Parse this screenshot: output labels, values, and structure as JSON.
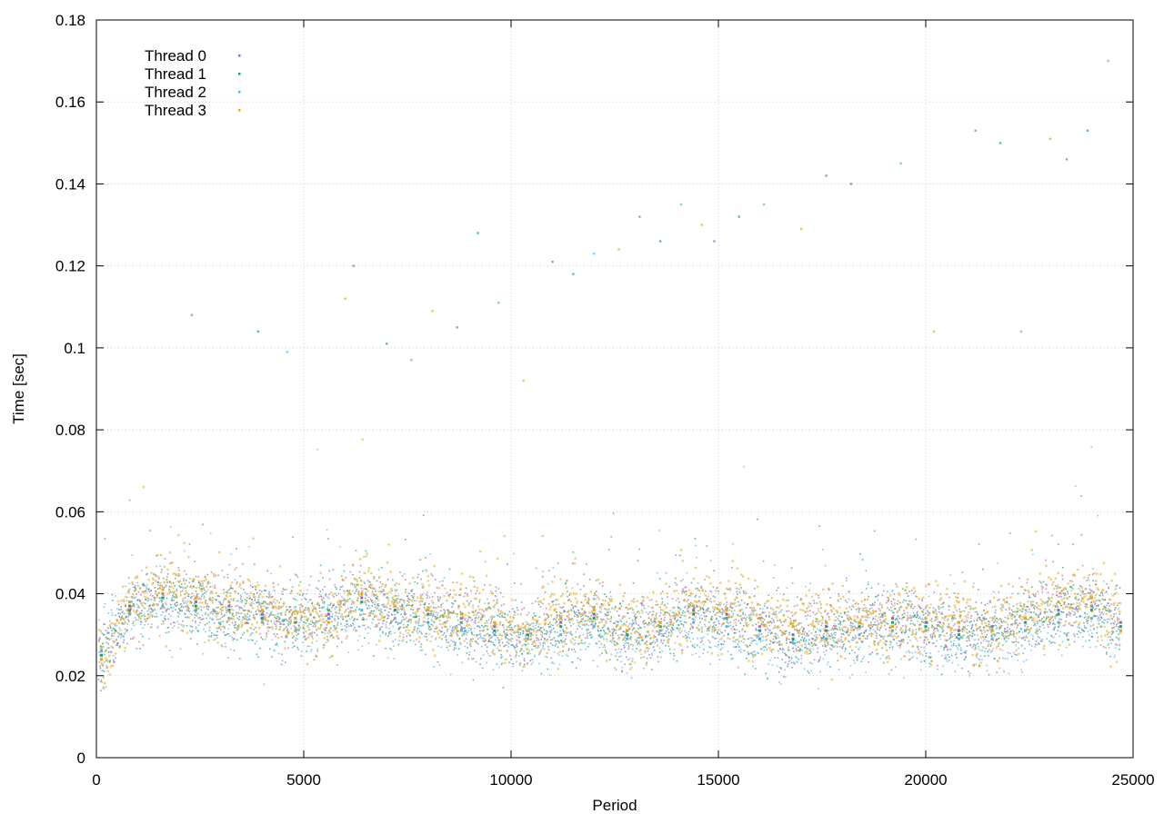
{
  "chart_data": {
    "type": "scatter",
    "title": "",
    "xlabel": "Period",
    "ylabel": "Time [sec]",
    "xlim": [
      0,
      25000
    ],
    "ylim": [
      0,
      0.18
    ],
    "xticks": [
      0,
      5000,
      10000,
      15000,
      20000,
      25000
    ],
    "yticks": [
      0,
      0.02,
      0.04,
      0.06,
      0.08,
      0.1,
      0.12,
      0.14,
      0.16,
      0.18
    ],
    "xtick_labels": [
      "0",
      "5000",
      "10000",
      "15000",
      "20000",
      "25000"
    ],
    "ytick_labels": [
      "0",
      "0.02",
      "0.04",
      "0.06",
      "0.08",
      "0.1",
      "0.12",
      "0.14",
      "0.16",
      "0.18"
    ],
    "grid": true,
    "legend_position": "top-left",
    "series": [
      {
        "name": "Thread 0",
        "color": "#9a5fc8",
        "marker": "dot",
        "points": [
          [
            120,
            0.024
          ],
          [
            800,
            0.036
          ],
          [
            1600,
            0.04
          ],
          [
            2400,
            0.038
          ],
          [
            3200,
            0.037
          ],
          [
            4000,
            0.035
          ],
          [
            4800,
            0.034
          ],
          [
            5600,
            0.035
          ],
          [
            6400,
            0.039
          ],
          [
            7200,
            0.037
          ],
          [
            8000,
            0.036
          ],
          [
            8800,
            0.034
          ],
          [
            9600,
            0.032
          ],
          [
            10400,
            0.031
          ],
          [
            11200,
            0.033
          ],
          [
            12000,
            0.035
          ],
          [
            12800,
            0.031
          ],
          [
            13600,
            0.033
          ],
          [
            14400,
            0.036
          ],
          [
            15200,
            0.035
          ],
          [
            16000,
            0.032
          ],
          [
            16800,
            0.03
          ],
          [
            17600,
            0.032
          ],
          [
            18400,
            0.033
          ],
          [
            19200,
            0.034
          ],
          [
            20000,
            0.033
          ],
          [
            20800,
            0.031
          ],
          [
            21600,
            0.032
          ],
          [
            22400,
            0.034
          ],
          [
            23200,
            0.036
          ],
          [
            24000,
            0.037
          ],
          [
            24700,
            0.033
          ]
        ]
      },
      {
        "name": "Thread 1",
        "color": "#1a9e77",
        "marker": "dot",
        "points": [
          [
            120,
            0.025
          ],
          [
            800,
            0.037
          ],
          [
            1600,
            0.039
          ],
          [
            2400,
            0.037
          ],
          [
            3200,
            0.036
          ],
          [
            4000,
            0.034
          ],
          [
            4800,
            0.033
          ],
          [
            5600,
            0.036
          ],
          [
            6400,
            0.038
          ],
          [
            7200,
            0.036
          ],
          [
            8000,
            0.035
          ],
          [
            8800,
            0.033
          ],
          [
            9600,
            0.031
          ],
          [
            10400,
            0.03
          ],
          [
            11200,
            0.032
          ],
          [
            12000,
            0.034
          ],
          [
            12800,
            0.03
          ],
          [
            13600,
            0.032
          ],
          [
            14400,
            0.035
          ],
          [
            15200,
            0.034
          ],
          [
            16000,
            0.031
          ],
          [
            16800,
            0.029
          ],
          [
            17600,
            0.031
          ],
          [
            18400,
            0.032
          ],
          [
            19200,
            0.033
          ],
          [
            20000,
            0.032
          ],
          [
            20800,
            0.03
          ],
          [
            21600,
            0.031
          ],
          [
            22400,
            0.033
          ],
          [
            23200,
            0.035
          ],
          [
            24000,
            0.036
          ],
          [
            24700,
            0.032
          ]
        ]
      },
      {
        "name": "Thread 2",
        "color": "#56b4e9",
        "marker": "dot",
        "points": [
          [
            120,
            0.026
          ],
          [
            800,
            0.035
          ],
          [
            1600,
            0.037
          ],
          [
            2400,
            0.036
          ],
          [
            3200,
            0.034
          ],
          [
            4000,
            0.033
          ],
          [
            4800,
            0.031
          ],
          [
            5600,
            0.034
          ],
          [
            6400,
            0.036
          ],
          [
            7200,
            0.034
          ],
          [
            8000,
            0.033
          ],
          [
            8800,
            0.031
          ],
          [
            9600,
            0.03
          ],
          [
            10400,
            0.029
          ],
          [
            11200,
            0.03
          ],
          [
            12000,
            0.032
          ],
          [
            12800,
            0.029
          ],
          [
            13600,
            0.031
          ],
          [
            14400,
            0.033
          ],
          [
            15200,
            0.032
          ],
          [
            16000,
            0.029
          ],
          [
            16800,
            0.028
          ],
          [
            17600,
            0.029
          ],
          [
            18400,
            0.03
          ],
          [
            19200,
            0.031
          ],
          [
            20000,
            0.031
          ],
          [
            20800,
            0.029
          ],
          [
            21600,
            0.029
          ],
          [
            22400,
            0.031
          ],
          [
            23200,
            0.033
          ],
          [
            24000,
            0.034
          ],
          [
            24700,
            0.031
          ]
        ]
      },
      {
        "name": "Thread 3",
        "color": "#e6a817",
        "marker": "square",
        "points": [
          [
            120,
            0.024
          ],
          [
            800,
            0.038
          ],
          [
            1600,
            0.041
          ],
          [
            2400,
            0.039
          ],
          [
            3200,
            0.038
          ],
          [
            4000,
            0.036
          ],
          [
            4800,
            0.034
          ],
          [
            5600,
            0.033
          ],
          [
            6400,
            0.04
          ],
          [
            7200,
            0.037
          ],
          [
            8000,
            0.036
          ],
          [
            8800,
            0.035
          ],
          [
            9600,
            0.033
          ],
          [
            10400,
            0.031
          ],
          [
            11200,
            0.034
          ],
          [
            12000,
            0.036
          ],
          [
            12800,
            0.031
          ],
          [
            13600,
            0.033
          ],
          [
            14400,
            0.037
          ],
          [
            15200,
            0.036
          ],
          [
            16000,
            0.034
          ],
          [
            16800,
            0.032
          ],
          [
            17600,
            0.033
          ],
          [
            18400,
            0.033
          ],
          [
            19200,
            0.032
          ],
          [
            20000,
            0.034
          ],
          [
            20800,
            0.033
          ],
          [
            21600,
            0.031
          ],
          [
            22400,
            0.034
          ],
          [
            23200,
            0.038
          ],
          [
            24000,
            0.039
          ],
          [
            24700,
            0.031
          ]
        ]
      }
    ],
    "outliers": [
      [
        2300,
        0.108
      ],
      [
        3900,
        0.104
      ],
      [
        4600,
        0.099
      ],
      [
        6000,
        0.112
      ],
      [
        6200,
        0.12
      ],
      [
        7000,
        0.101
      ],
      [
        7600,
        0.097
      ],
      [
        8100,
        0.109
      ],
      [
        8700,
        0.105
      ],
      [
        9200,
        0.128
      ],
      [
        9700,
        0.111
      ],
      [
        10300,
        0.092
      ],
      [
        11000,
        0.121
      ],
      [
        11500,
        0.118
      ],
      [
        12000,
        0.123
      ],
      [
        12600,
        0.124
      ],
      [
        13100,
        0.132
      ],
      [
        13600,
        0.126
      ],
      [
        14100,
        0.135
      ],
      [
        14600,
        0.13
      ],
      [
        14900,
        0.126
      ],
      [
        15500,
        0.132
      ],
      [
        16100,
        0.135
      ],
      [
        17000,
        0.129
      ],
      [
        17600,
        0.142
      ],
      [
        18200,
        0.14
      ],
      [
        19400,
        0.145
      ],
      [
        20200,
        0.104
      ],
      [
        21200,
        0.153
      ],
      [
        21800,
        0.15
      ],
      [
        22300,
        0.104
      ],
      [
        23000,
        0.151
      ],
      [
        23400,
        0.146
      ],
      [
        23900,
        0.153
      ],
      [
        24400,
        0.17
      ]
    ]
  }
}
